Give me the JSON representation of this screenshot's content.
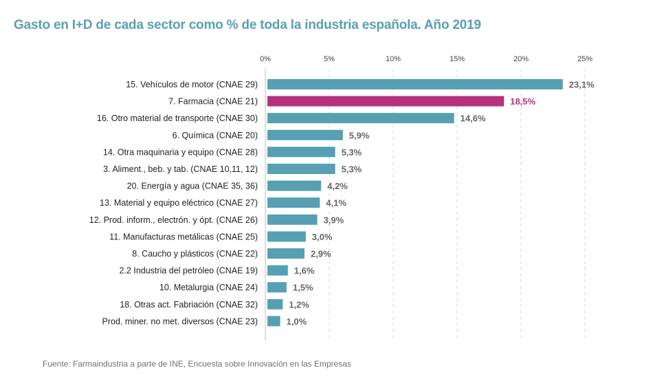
{
  "chart_data": {
    "type": "bar",
    "orientation": "horizontal",
    "title": "Gasto en I+D de cada sector como % de toda la industria española. Año 2019",
    "xlabel": "",
    "ylabel": "",
    "xlim": [
      0,
      25
    ],
    "x_ticks": [
      0,
      5,
      10,
      15,
      20,
      25
    ],
    "x_tick_labels": [
      "0%",
      "5%",
      "10%",
      "15%",
      "20%",
      "25%"
    ],
    "grid": "vertical-dashed",
    "categories": [
      "15. Vehículos de motor (CNAE 29)",
      "7. Farmacia (CNAE 21)",
      "16. Otro material de transporte (CNAE 30)",
      "6. Química (CNAE 20)",
      "14. Otra maquinaria y equipo (CNAE 28)",
      "3. Aliment., beb. y tab. (CNAE 10,11, 12)",
      "20. Energía y agua (CNAE 35, 36)",
      "13. Material y equipo eléctrico (CNAE 27)",
      "12. Prod. inform., electrón. y ópt. (CNAE 26)",
      "11. Manufacturas metálicas (CNAE 25)",
      "8. Caucho y plásticos (CNAE 22)",
      "2.2 Industria del petróleo (CNAE 19)",
      "10. Metalurgia (CNAE 24)",
      "18. Otras act. Fabriación (CNAE 32)",
      "Prod. miner. no met. diversos (CNAE 23)"
    ],
    "values": [
      23.1,
      18.5,
      14.6,
      5.9,
      5.3,
      5.3,
      4.2,
      4.1,
      3.9,
      3.0,
      2.9,
      1.6,
      1.5,
      1.2,
      1.0
    ],
    "value_labels": [
      "23,1%",
      "18,5%",
      "14,6%",
      "5,9%",
      "5,3%",
      "5,3%",
      "4,2%",
      "4,1%",
      "3,9%",
      "3,0%",
      "2,9%",
      "1,6%",
      "1,5%",
      "1,2%",
      "1,0%"
    ],
    "highlight_index": 1,
    "colors": {
      "bar": "#579fb2",
      "highlight": "#b5327d",
      "value_label": "#666666",
      "grid": "#d8d8d8",
      "axis": "#bbbbbb"
    }
  },
  "source": "Fuente: Farmaindustria a parte de INE, Encuesta sobre Innovación en las Empresas"
}
